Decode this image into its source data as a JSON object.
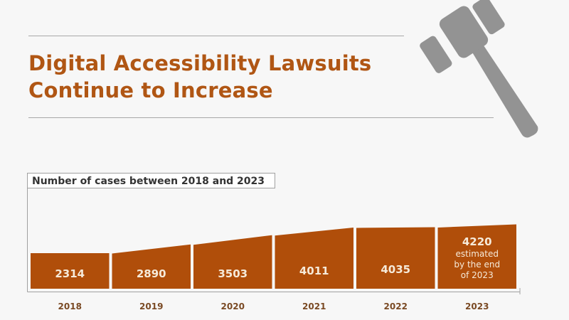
{
  "header": {
    "title_line1": "Digital Accessibility Lawsuits",
    "title_line2": "Continue to Increase",
    "icon": "gavel-icon"
  },
  "colors": {
    "accent": "#b05614",
    "bar_fill": "#b04e0a",
    "bar_text": "#f6ead9",
    "year_text": "#7a4a24",
    "gavel": "#939393",
    "background": "#f7f7f7"
  },
  "chart_data": {
    "type": "bar",
    "title": "Number of cases between 2018 and 2023",
    "xlabel": "",
    "ylabel": "",
    "categories": [
      "2018",
      "2019",
      "2020",
      "2021",
      "2022",
      "2023"
    ],
    "values": [
      2314,
      2890,
      3503,
      4011,
      4035,
      4220
    ],
    "value_labels": [
      "2314",
      "2890",
      "3503",
      "4011",
      "4035",
      "4220"
    ],
    "annotations": [
      {
        "category": "2023",
        "text_lines": [
          "estimated",
          "by the end",
          "of 2023"
        ]
      }
    ],
    "grid": false,
    "legend": "none"
  }
}
